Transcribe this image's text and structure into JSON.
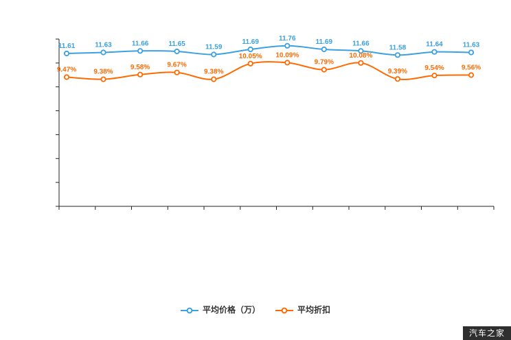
{
  "chart_data": {
    "type": "line",
    "title": "",
    "xlabel": "",
    "ylabel": "",
    "grid": false,
    "legend_position": "bottom",
    "axis_tick_labels_visible": false,
    "categories": [],
    "series": [
      {
        "name": "平均价格（万）",
        "color": "#3aa0e0",
        "suffix": "",
        "values": [
          11.61,
          11.63,
          11.66,
          11.65,
          11.59,
          11.69,
          11.76,
          11.69,
          11.66,
          11.58,
          11.64,
          11.63
        ]
      },
      {
        "name": "平均折扣",
        "color": "#ff6a00",
        "suffix": "%",
        "values": [
          9.47,
          9.38,
          9.58,
          9.67,
          9.38,
          10.05,
          10.09,
          9.79,
          10.08,
          9.39,
          9.54,
          9.56
        ]
      }
    ]
  },
  "legend": {
    "items": [
      {
        "label": "平均价格（万）",
        "color": "#3aa0e0"
      },
      {
        "label": "平均折扣",
        "color": "#ff6a00"
      }
    ]
  },
  "watermark": "汽车之家"
}
